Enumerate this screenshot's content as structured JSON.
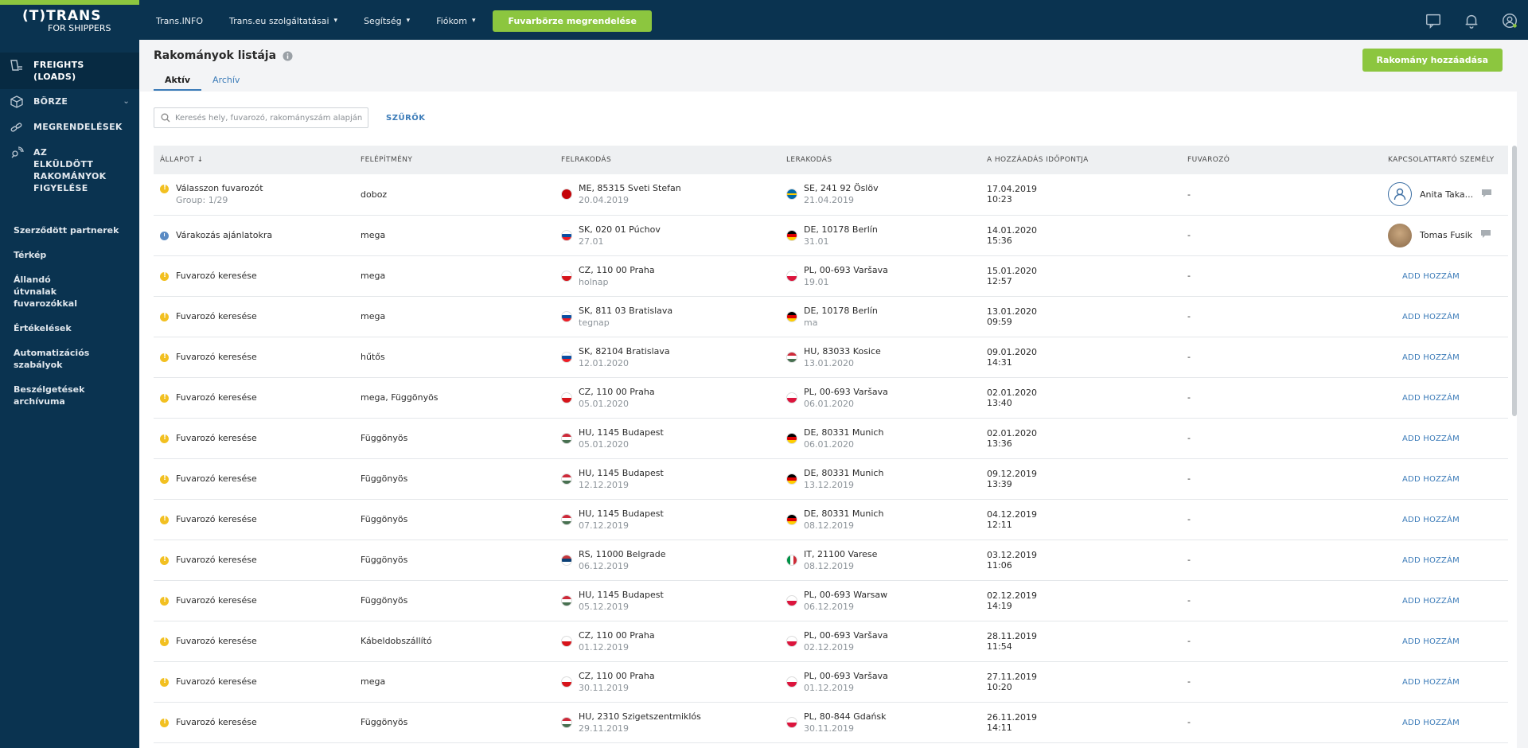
{
  "brand": {
    "logo_main": "(T)TRANS",
    "logo_sub": "FOR SHIPPERS"
  },
  "sidebar": {
    "main": [
      {
        "label": "FREIGHTS (LOADS)",
        "icon": "freights-icon",
        "active": true
      },
      {
        "label": "BÖRZE",
        "icon": "box-icon",
        "chevron": true
      },
      {
        "label": "MEGRENDELÉSEK",
        "icon": "link-icon"
      },
      {
        "label": "AZ ELKÜLDÖTT RAKOMÁNYOK FIGYELÉSE",
        "icon": "satellite-icon"
      }
    ],
    "sub": [
      "Szerződött partnerek",
      "Térkép",
      "Állandó útvnalak fuvarozókkal",
      "Értékelések",
      "Automatizációs szabályok",
      "Beszélgetések archívuma"
    ]
  },
  "topbar": {
    "links": [
      {
        "label": "Trans.INFO"
      },
      {
        "label": "Trans.eu szolgáltatásai",
        "caret": true
      },
      {
        "label": "Segítség",
        "caret": true
      },
      {
        "label": "Fiókom",
        "caret": true
      }
    ],
    "cta": "Fuvarbörze megrendelése",
    "icons": [
      "chat-icon",
      "bell-icon",
      "user-icon"
    ]
  },
  "page": {
    "title": "Rakományok listája",
    "add_button": "Rakomány hozzáadása",
    "tabs": [
      {
        "label": "Aktív",
        "active": true
      },
      {
        "label": "Archív"
      }
    ],
    "search_placeholder": "Keresés hely, fuvarozó, rakományszám alapján",
    "filters_label": "SZŰRŐK"
  },
  "table": {
    "headers": [
      "ÁLLAPOT ↓",
      "FELÉPÍTMÉNY",
      "FELRAKODÁS",
      "LERAKODÁS",
      "A HOZZÁADÁS IDŐPONTJA",
      "FUVAROZÓ",
      "KAPCSOLATTARTÓ SZEMÉLY"
    ],
    "rows": [
      {
        "status": "Válasszon fuvarozót",
        "status_sub": "Group: 1/29",
        "status_type": "warn",
        "body": "doboz",
        "from_flag": "ME",
        "from": "ME, 85315 Sveti Stefan",
        "from_date": "20.04.2019",
        "to_flag": "SE",
        "to": "SE, 241 92 Öslöv",
        "to_date": "21.04.2019",
        "added_date": "17.04.2019",
        "added_time": "10:23",
        "carrier": "-",
        "contact": "Anita Taka...",
        "contact_type": "default"
      },
      {
        "status": "Várakozás ajánlatokra",
        "status_sub": "",
        "status_type": "wait",
        "body": "mega",
        "from_flag": "SK",
        "from": "SK, 020 01 Púchov",
        "from_date": "27.01",
        "to_flag": "DE",
        "to": "DE, 10178 Berlín",
        "to_date": "31.01",
        "added_date": "14.01.2020",
        "added_time": "15:36",
        "carrier": "-",
        "contact": "Tomas Fusik",
        "contact_type": "photo"
      },
      {
        "status": "Fuvarozó keresése",
        "status_sub": "",
        "status_type": "warn",
        "body": "mega",
        "from_flag": "CZ",
        "from": "CZ, 110 00 Praha",
        "from_date": "holnap",
        "to_flag": "PL",
        "to": "PL, 00-693 Varšava",
        "to_date": "19.01",
        "added_date": "15.01.2020",
        "added_time": "12:57",
        "carrier": "-",
        "contact": "ADD HOZZÁM",
        "contact_type": "add"
      },
      {
        "status": "Fuvarozó keresése",
        "status_sub": "",
        "status_type": "warn",
        "body": "mega",
        "from_flag": "SK",
        "from": "SK, 811 03 Bratislava",
        "from_date": "tegnap",
        "to_flag": "DE",
        "to": "DE, 10178 Berlín",
        "to_date": "ma",
        "added_date": "13.01.2020",
        "added_time": "09:59",
        "carrier": "-",
        "contact": "ADD HOZZÁM",
        "contact_type": "add"
      },
      {
        "status": "Fuvarozó keresése",
        "status_sub": "",
        "status_type": "warn",
        "body": "hűtős",
        "from_flag": "SK",
        "from": "SK, 82104 Bratislava",
        "from_date": "12.01.2020",
        "to_flag": "HU",
        "to": "HU, 83033 Kosice",
        "to_date": "13.01.2020",
        "added_date": "09.01.2020",
        "added_time": "14:31",
        "carrier": "-",
        "contact": "ADD HOZZÁM",
        "contact_type": "add"
      },
      {
        "status": "Fuvarozó keresése",
        "status_sub": "",
        "status_type": "warn",
        "body": "mega, Függönyös",
        "from_flag": "CZ",
        "from": "CZ, 110 00 Praha",
        "from_date": "05.01.2020",
        "to_flag": "PL",
        "to": "PL, 00-693 Varšava",
        "to_date": "06.01.2020",
        "added_date": "02.01.2020",
        "added_time": "13:40",
        "carrier": "-",
        "contact": "ADD HOZZÁM",
        "contact_type": "add"
      },
      {
        "status": "Fuvarozó keresése",
        "status_sub": "",
        "status_type": "warn",
        "body": "Függönyös",
        "from_flag": "HU",
        "from": "HU, 1145 Budapest",
        "from_date": "05.01.2020",
        "to_flag": "DE",
        "to": "DE, 80331 Munich",
        "to_date": "06.01.2020",
        "added_date": "02.01.2020",
        "added_time": "13:36",
        "carrier": "-",
        "contact": "ADD HOZZÁM",
        "contact_type": "add"
      },
      {
        "status": "Fuvarozó keresése",
        "status_sub": "",
        "status_type": "warn",
        "body": "Függönyös",
        "from_flag": "HU",
        "from": "HU, 1145 Budapest",
        "from_date": "12.12.2019",
        "to_flag": "DE",
        "to": "DE, 80331 Munich",
        "to_date": "13.12.2019",
        "added_date": "09.12.2019",
        "added_time": "13:39",
        "carrier": "-",
        "contact": "ADD HOZZÁM",
        "contact_type": "add"
      },
      {
        "status": "Fuvarozó keresése",
        "status_sub": "",
        "status_type": "warn",
        "body": "Függönyös",
        "from_flag": "HU",
        "from": "HU, 1145 Budapest",
        "from_date": "07.12.2019",
        "to_flag": "DE",
        "to": "DE, 80331 Munich",
        "to_date": "08.12.2019",
        "added_date": "04.12.2019",
        "added_time": "12:11",
        "carrier": "-",
        "contact": "ADD HOZZÁM",
        "contact_type": "add"
      },
      {
        "status": "Fuvarozó keresése",
        "status_sub": "",
        "status_type": "warn",
        "body": "Függönyös",
        "from_flag": "RS",
        "from": "RS, 11000 Belgrade",
        "from_date": "06.12.2019",
        "to_flag": "IT",
        "to": "IT, 21100 Varese",
        "to_date": "08.12.2019",
        "added_date": "03.12.2019",
        "added_time": "11:06",
        "carrier": "-",
        "contact": "ADD HOZZÁM",
        "contact_type": "add"
      },
      {
        "status": "Fuvarozó keresése",
        "status_sub": "",
        "status_type": "warn",
        "body": "Függönyös",
        "from_flag": "HU",
        "from": "HU, 1145 Budapest",
        "from_date": "05.12.2019",
        "to_flag": "PL",
        "to": "PL, 00-693 Warsaw",
        "to_date": "06.12.2019",
        "added_date": "02.12.2019",
        "added_time": "14:19",
        "carrier": "-",
        "contact": "ADD HOZZÁM",
        "contact_type": "add"
      },
      {
        "status": "Fuvarozó keresése",
        "status_sub": "",
        "status_type": "warn",
        "body": "Kábeldobszállító",
        "from_flag": "CZ",
        "from": "CZ, 110 00 Praha",
        "from_date": "01.12.2019",
        "to_flag": "PL",
        "to": "PL, 00-693 Varšava",
        "to_date": "02.12.2019",
        "added_date": "28.11.2019",
        "added_time": "11:54",
        "carrier": "-",
        "contact": "ADD HOZZÁM",
        "contact_type": "add"
      },
      {
        "status": "Fuvarozó keresése",
        "status_sub": "",
        "status_type": "warn",
        "body": "mega",
        "from_flag": "CZ",
        "from": "CZ, 110 00 Praha",
        "from_date": "30.11.2019",
        "to_flag": "PL",
        "to": "PL, 00-693 Varšava",
        "to_date": "01.12.2019",
        "added_date": "27.11.2019",
        "added_time": "10:20",
        "carrier": "-",
        "contact": "ADD HOZZÁM",
        "contact_type": "add"
      },
      {
        "status": "Fuvarozó keresése",
        "status_sub": "",
        "status_type": "warn",
        "body": "Függönyös",
        "from_flag": "HU",
        "from": "HU, 2310 Szigetszentmiklós",
        "from_date": "29.11.2019",
        "to_flag": "PL",
        "to": "PL, 80-844 Gdańsk",
        "to_date": "30.11.2019",
        "added_date": "26.11.2019",
        "added_time": "14:11",
        "carrier": "-",
        "contact": "ADD HOZZÁM",
        "contact_type": "add"
      }
    ]
  },
  "colors": {
    "sidebar": "#0a3350",
    "accent_green": "#8cc63f",
    "link_blue": "#3b7bb8",
    "warn": "#f2c021",
    "wait": "#5a8bc4"
  }
}
